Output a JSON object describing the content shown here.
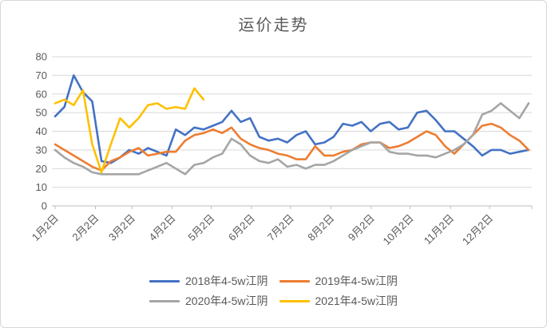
{
  "chart_data": {
    "type": "line",
    "title": "运价走势",
    "xlabel": "",
    "ylabel": "",
    "ylim": [
      0,
      80
    ],
    "y_tick_step": 10,
    "y_tick_labels": [
      "0",
      "10",
      "20",
      "30",
      "40",
      "50",
      "60",
      "70",
      "80"
    ],
    "x_tick_labels": [
      "1月2日",
      "2月2日",
      "3月2日",
      "4月2日",
      "5月2日",
      "6月2日",
      "7月2日",
      "8月2日",
      "9月2日",
      "10月2日",
      "11月2日",
      "12月2日"
    ],
    "x_tick_month_days": [
      0,
      31,
      59,
      90,
      120,
      151,
      181,
      212,
      243,
      273,
      304,
      334
    ],
    "x_unit": "weekly points from 1月2日",
    "grid": true,
    "legend_position": "bottom",
    "axis_color": "#bfbfbf",
    "gridline_color": "#d9d9d9",
    "label_color": "#595959",
    "series": [
      {
        "name": "2018年4-5w江阴",
        "color": "#4472C4",
        "values": [
          48,
          53,
          70,
          61,
          56,
          24,
          23,
          26,
          30,
          28,
          31,
          29,
          27,
          41,
          38,
          42,
          41,
          43,
          45,
          51,
          45,
          47,
          37,
          35,
          36,
          34,
          38,
          40,
          33,
          34,
          37,
          44,
          43,
          45,
          40,
          44,
          45,
          41,
          42,
          50,
          51,
          46,
          40,
          40,
          36,
          32,
          27,
          30,
          30,
          28,
          29,
          30
        ]
      },
      {
        "name": "2019年4-5w江阴",
        "color": "#ED7D31",
        "values": [
          33,
          30,
          27,
          24,
          21,
          19,
          24,
          26,
          29,
          31,
          27,
          28,
          29,
          29,
          35,
          38,
          39,
          41,
          39,
          42,
          36,
          33,
          31,
          30,
          28,
          27,
          25,
          25,
          32,
          27,
          27,
          29,
          30,
          33,
          34,
          34,
          31,
          32,
          34,
          37,
          40,
          38,
          32,
          28,
          33,
          38,
          43,
          44,
          42,
          38,
          35,
          30
        ]
      },
      {
        "name": "2020年4-5w江阴",
        "color": "#A5A5A5",
        "values": [
          30,
          26,
          23,
          21,
          18,
          17,
          17,
          17,
          17,
          17,
          19,
          21,
          23,
          20,
          17,
          22,
          23,
          26,
          28,
          36,
          33,
          27,
          24,
          23,
          25,
          21,
          22,
          20,
          22,
          22,
          24,
          27,
          30,
          32,
          34,
          34,
          29,
          28,
          28,
          27,
          27,
          26,
          28,
          30,
          33,
          38,
          49,
          51,
          55,
          51,
          47,
          55
        ]
      },
      {
        "name": "2021年4-5w江阴",
        "color": "#FFC000",
        "values": [
          55,
          57,
          54,
          62,
          33,
          18,
          33,
          47,
          42,
          47,
          54,
          55,
          52,
          53,
          52,
          63,
          57
        ]
      }
    ]
  }
}
